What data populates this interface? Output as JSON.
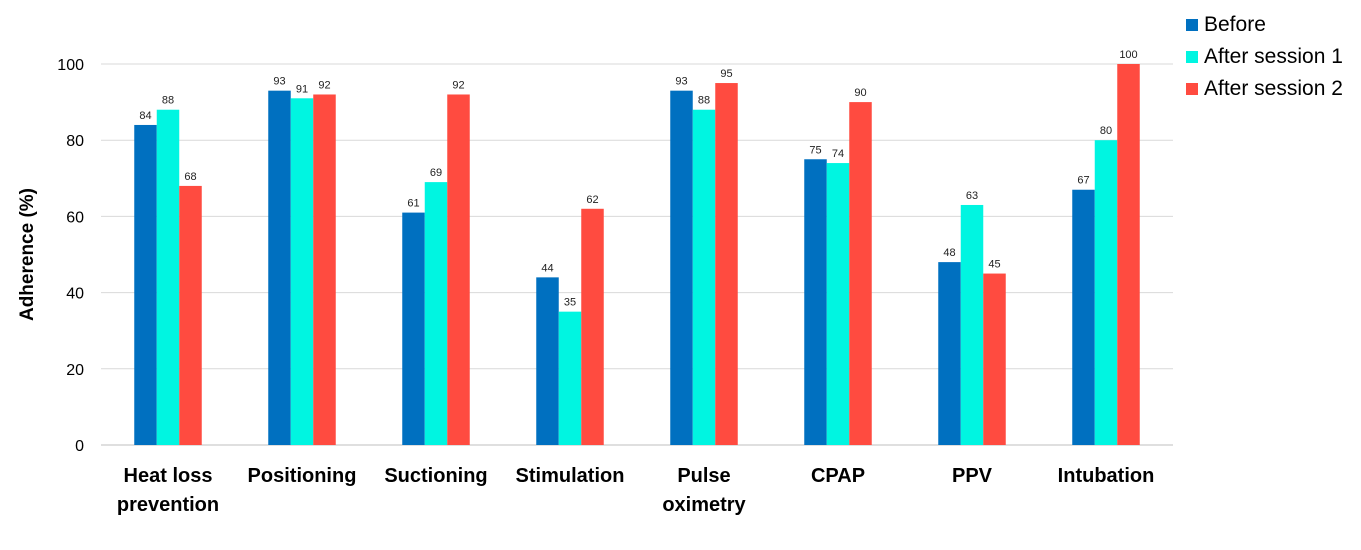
{
  "chart_data": {
    "type": "bar",
    "title": "",
    "xlabel": "",
    "ylabel": "Adherence (%)",
    "ylim": [
      0,
      100
    ],
    "yticks": [
      0,
      20,
      40,
      60,
      80,
      100
    ],
    "grid": true,
    "legend_position": "top-right",
    "categories": [
      [
        "Heat loss",
        "prevention"
      ],
      [
        "Positioning"
      ],
      [
        "Suctioning"
      ],
      [
        "Stimulation"
      ],
      [
        "Pulse",
        "oximetry"
      ],
      [
        "CPAP"
      ],
      [
        "PPV"
      ],
      [
        "Intubation"
      ]
    ],
    "series": [
      {
        "name": "Before",
        "color": "#0070C0",
        "values": [
          84,
          93,
          61,
          44,
          93,
          75,
          48,
          67
        ]
      },
      {
        "name": "After session 1",
        "color": "#00F5E1",
        "values": [
          88,
          91,
          69,
          35,
          88,
          74,
          63,
          80
        ]
      },
      {
        "name": "After session 2",
        "color": "#FF4B40",
        "values": [
          68,
          92,
          92,
          62,
          95,
          90,
          45,
          100
        ]
      }
    ]
  }
}
